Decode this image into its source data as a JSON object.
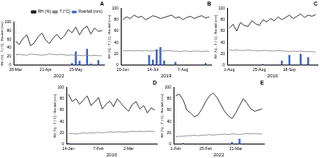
{
  "chart_data": [
    {
      "type": "bar",
      "title": "A",
      "x_label": "2022",
      "y_label": "RH (%) - T (°C) - Rainfall (mm)",
      "categories": [
        "28-Mar",
        null,
        null,
        null,
        null,
        null,
        null,
        null,
        "21-Apr",
        null,
        null,
        null,
        null,
        null,
        null,
        null,
        "15-May",
        null,
        null,
        null,
        null,
        null,
        null,
        null
      ],
      "series": [
        {
          "name": "RH (%)",
          "type": "line",
          "color": "#222222",
          "values": [
            55,
            48,
            62,
            70,
            45,
            52,
            66,
            74,
            58,
            50,
            63,
            71,
            60,
            68,
            82,
            75,
            88,
            70,
            84,
            90,
            72,
            86,
            78,
            80
          ]
        },
        {
          "name": "T (°C)",
          "type": "line",
          "color": "#8c8c8c",
          "values": [
            24,
            25,
            24,
            23,
            26,
            25,
            24,
            23,
            24,
            26,
            25,
            24,
            25,
            24,
            23,
            24,
            22,
            23,
            22,
            23,
            22,
            23,
            22,
            22
          ]
        },
        {
          "name": "Rainfall (mm)",
          "type": "bar",
          "color": "#3a5fcd",
          "values": [
            0,
            0,
            0,
            0,
            0,
            0,
            0,
            0,
            0,
            0,
            0,
            0,
            0,
            0,
            0,
            5,
            32,
            10,
            0,
            38,
            4,
            0,
            12,
            0
          ]
        }
      ],
      "ylim": [
        0,
        100
      ],
      "yticks": [
        0,
        20,
        40,
        60,
        80,
        100
      ],
      "grid": false,
      "legend": "upper right"
    },
    {
      "type": "bar",
      "title": "B",
      "x_label": "2019",
      "y_label": "RH (%) - T (°C) - Rainfall (mm)",
      "categories": [
        "20-Jun",
        null,
        null,
        null,
        null,
        null,
        null,
        null,
        "14-Jul",
        null,
        null,
        null,
        null,
        null,
        null,
        null,
        "7-Aug",
        null,
        null,
        null,
        null,
        null,
        null,
        null
      ],
      "series": [
        {
          "name": "RH (%)",
          "type": "line",
          "color": "#222222",
          "values": [
            80,
            85,
            82,
            88,
            84,
            86,
            80,
            83,
            87,
            85,
            82,
            84,
            86,
            88,
            83,
            85,
            80,
            84,
            86,
            82,
            85,
            87,
            83,
            85
          ]
        },
        {
          "name": "T (°C)",
          "type": "line",
          "color": "#8c8c8c",
          "values": [
            26,
            25,
            26,
            25,
            26,
            25,
            26,
            25,
            25,
            26,
            25,
            25,
            26,
            25,
            25,
            24,
            25,
            25,
            24,
            25,
            25,
            24,
            25,
            24
          ]
        },
        {
          "name": "Rainfall (mm)",
          "type": "bar",
          "color": "#3a5fcd",
          "values": [
            0,
            0,
            0,
            0,
            0,
            0,
            0,
            18,
            10,
            28,
            32,
            8,
            0,
            0,
            6,
            0,
            0,
            0,
            0,
            0,
            0,
            0,
            4,
            0
          ]
        }
      ],
      "ylim": [
        0,
        100
      ],
      "yticks": [
        0,
        20,
        40,
        60,
        80,
        100
      ],
      "grid": false
    },
    {
      "type": "bar",
      "title": "C",
      "x_label": "2016",
      "y_label": "RH (%) - T (°C) - Rainfall (mm)",
      "categories": [
        "1-Aug",
        null,
        null,
        null,
        null,
        null,
        null,
        null,
        "25-Aug",
        null,
        null,
        null,
        null,
        null,
        null,
        null,
        "18-Sep",
        null,
        null,
        null,
        null,
        null,
        null,
        null
      ],
      "series": [
        {
          "name": "RH (%)",
          "type": "line",
          "color": "#222222",
          "values": [
            65,
            72,
            60,
            75,
            70,
            68,
            78,
            73,
            70,
            80,
            76,
            82,
            78,
            85,
            80,
            84,
            88,
            82,
            86,
            90,
            84,
            88,
            86,
            89
          ]
        },
        {
          "name": "T (°C)",
          "type": "line",
          "color": "#8c8c8c",
          "values": [
            27,
            26,
            27,
            26,
            26,
            27,
            26,
            26,
            25,
            26,
            26,
            25,
            25,
            26,
            25,
            25,
            24,
            25,
            24,
            25,
            24,
            24,
            24,
            23
          ]
        },
        {
          "name": "Rainfall (mm)",
          "type": "bar",
          "color": "#3a5fcd",
          "values": [
            0,
            0,
            0,
            0,
            0,
            0,
            0,
            0,
            0,
            2,
            0,
            0,
            0,
            0,
            8,
            0,
            18,
            0,
            0,
            20,
            0,
            14,
            0,
            0
          ]
        }
      ],
      "ylim": [
        0,
        100
      ],
      "yticks": [
        0,
        20,
        40,
        60,
        80,
        100
      ],
      "grid": false
    },
    {
      "type": "bar",
      "title": "D",
      "x_label": "2016",
      "y_label": "RH (%) - T (°C) - Rainfall (mm)",
      "categories": [
        "14-Jan",
        null,
        null,
        null,
        null,
        null,
        null,
        null,
        "7-Feb",
        null,
        null,
        null,
        null,
        null,
        null,
        null,
        "2-Mar",
        null,
        null,
        null,
        null,
        null,
        null,
        null
      ],
      "series": [
        {
          "name": "RH (%)",
          "type": "line",
          "color": "#222222",
          "values": [
            88,
            75,
            80,
            70,
            78,
            85,
            68,
            74,
            82,
            62,
            70,
            76,
            66,
            80,
            72,
            64,
            58,
            70,
            75,
            62,
            68,
            55,
            64,
            60
          ]
        },
        {
          "name": "T (°C)",
          "type": "line",
          "color": "#8c8c8c",
          "values": [
            18,
            19,
            18,
            19,
            20,
            19,
            20,
            20,
            21,
            20,
            21,
            22,
            21,
            22,
            22,
            21,
            22,
            23,
            22,
            23,
            22,
            23,
            23,
            22
          ]
        },
        {
          "name": "Rainfall (mm)",
          "type": "bar",
          "color": "#3a5fcd",
          "values": [
            2,
            0,
            0,
            0,
            0,
            0,
            0,
            0,
            0,
            0,
            0,
            0,
            0,
            0,
            0,
            0,
            0,
            0,
            0,
            0,
            0,
            0,
            0,
            0
          ]
        }
      ],
      "ylim": [
        0,
        100
      ],
      "yticks": [
        0,
        20,
        40,
        60,
        80,
        100
      ],
      "grid": false
    },
    {
      "type": "bar",
      "title": "E",
      "x_label": "2022",
      "y_label": "RH (%) - T (°C) - Rainfall (mm)",
      "categories": [
        "1-Feb",
        null,
        null,
        null,
        null,
        null,
        null,
        null,
        "25-Feb",
        null,
        null,
        null,
        null,
        null,
        null,
        null,
        "21-Mar",
        null,
        null,
        null,
        null,
        null,
        null,
        null
      ],
      "series": [
        {
          "name": "RH (%)",
          "type": "line",
          "color": "#222222",
          "values": [
            85,
            88,
            78,
            60,
            55,
            48,
            52,
            62,
            75,
            85,
            90,
            82,
            70,
            58,
            50,
            45,
            55,
            68,
            80,
            72,
            62,
            58,
            60,
            62
          ]
        },
        {
          "name": "T (°C)",
          "type": "line",
          "color": "#8c8c8c",
          "values": [
            13,
            14,
            14,
            15,
            15,
            16,
            15,
            16,
            16,
            17,
            16,
            17,
            17,
            18,
            17,
            18,
            18,
            17,
            18,
            19,
            18,
            19,
            18,
            18
          ]
        },
        {
          "name": "Rainfall (mm)",
          "type": "bar",
          "color": "#3a5fcd",
          "values": [
            0,
            0,
            2,
            0,
            0,
            0,
            0,
            0,
            0,
            0,
            0,
            0,
            0,
            0,
            0,
            4,
            0,
            10,
            0,
            0,
            0,
            0,
            0,
            0
          ]
        }
      ],
      "ylim": [
        0,
        100
      ],
      "yticks": [
        0,
        20,
        40,
        60,
        80,
        100
      ],
      "grid": false
    }
  ]
}
